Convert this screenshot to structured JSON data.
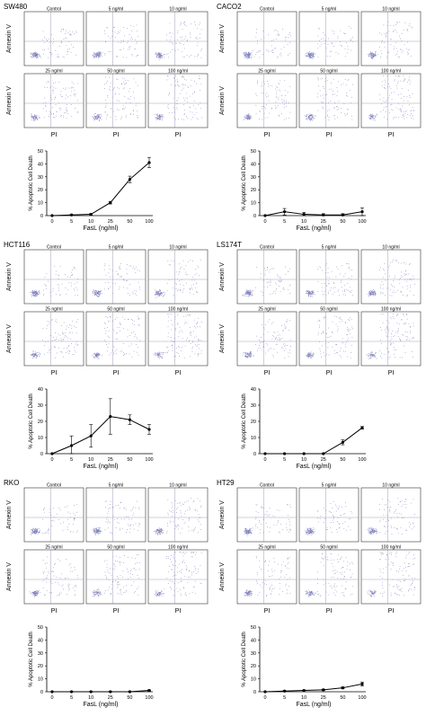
{
  "labels": {
    "annexin": "Annexin V",
    "pi": "PI",
    "fasl_axis": "FasL (ng/ml)",
    "y_axis": "% Apoptotic Cell Death"
  },
  "panel_captions": [
    "Control",
    "5 ng/ml",
    "10 ng/ml",
    "25 ng/ml",
    "50 ng/ml",
    "100 ng/ml"
  ],
  "cell_lines": [
    {
      "name": "SW480",
      "chart_data": {
        "type": "line",
        "categories": [
          "0",
          "5",
          "10",
          "25",
          "50",
          "100"
        ],
        "values": [
          0,
          0.5,
          1,
          10,
          28,
          41
        ],
        "errors": [
          0,
          0.3,
          0.5,
          1,
          2.5,
          4
        ],
        "xlabel": "FasL (ng/ml)",
        "ylabel": "% Apoptotic Cell Death",
        "ylim": [
          0,
          50
        ],
        "yticks": [
          "0",
          "10",
          "20",
          "30",
          "40",
          "50"
        ]
      }
    },
    {
      "name": "CACO2",
      "chart_data": {
        "type": "line",
        "categories": [
          "0",
          "5",
          "10",
          "25",
          "50",
          "100"
        ],
        "values": [
          0,
          3,
          1,
          0.5,
          0.5,
          3
        ],
        "errors": [
          0,
          2.5,
          1.5,
          1,
          1,
          3
        ],
        "xlabel": "FasL (ng/ml)",
        "ylabel": "% Apoptotic Cell Death",
        "ylim": [
          0,
          50
        ],
        "yticks": [
          "0",
          "10",
          "20",
          "30",
          "40",
          "50"
        ]
      }
    },
    {
      "name": "HCT116",
      "chart_data": {
        "type": "line",
        "categories": [
          "0",
          "5",
          "10",
          "25",
          "50",
          "100"
        ],
        "values": [
          0,
          5,
          11,
          23,
          21,
          15
        ],
        "errors": [
          0,
          6,
          7,
          11,
          3,
          3
        ],
        "xlabel": "FasL (ng/ml)",
        "ylabel": "% Apoptotic Cell Death",
        "ylim": [
          0,
          40
        ],
        "yticks": [
          "0",
          "10",
          "20",
          "30",
          "40"
        ]
      }
    },
    {
      "name": "LS174T",
      "chart_data": {
        "type": "line",
        "categories": [
          "0",
          "5",
          "10",
          "25",
          "50",
          "100"
        ],
        "values": [
          0,
          0,
          0,
          0,
          7,
          16
        ],
        "errors": [
          0,
          0,
          0,
          0,
          1.5,
          0.8
        ],
        "xlabel": "FasL (ng/ml)",
        "ylabel": "% Apoptotic Cell Death",
        "ylim": [
          0,
          40
        ],
        "yticks": [
          "0",
          "10",
          "20",
          "30",
          "40"
        ]
      }
    },
    {
      "name": "RKO",
      "chart_data": {
        "type": "line",
        "categories": [
          "0",
          "5",
          "10",
          "25",
          "50",
          "100"
        ],
        "values": [
          0,
          0,
          0,
          0,
          0,
          1
        ],
        "errors": [
          0,
          0.3,
          0.3,
          0.3,
          0.3,
          0.4
        ],
        "xlabel": "FasL (ng/ml)",
        "ylabel": "% Apoptotic Cell Death",
        "ylim": [
          0,
          50
        ],
        "yticks": [
          "0",
          "10",
          "20",
          "30",
          "40",
          "50"
        ]
      }
    },
    {
      "name": "HT29",
      "chart_data": {
        "type": "line",
        "categories": [
          "0",
          "5",
          "10",
          "25",
          "50",
          "100"
        ],
        "values": [
          0,
          0.5,
          1,
          1.5,
          3,
          6
        ],
        "errors": [
          0,
          0.3,
          0.3,
          0.5,
          0.8,
          1.5
        ],
        "xlabel": "FasL (ng/ml)",
        "ylabel": "% Apoptotic Cell Death",
        "ylim": [
          0,
          50
        ],
        "yticks": [
          "0",
          "10",
          "20",
          "30",
          "40",
          "50"
        ]
      }
    }
  ]
}
